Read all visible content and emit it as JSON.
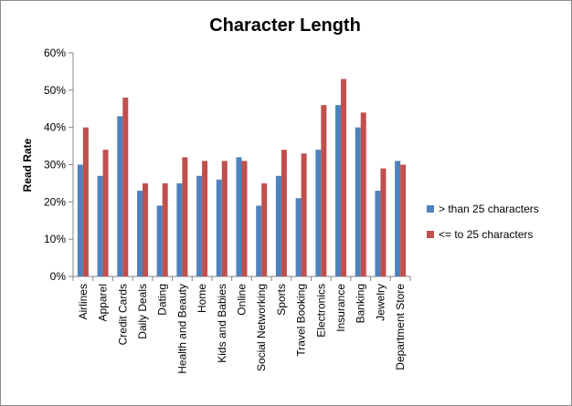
{
  "chart_data": {
    "type": "bar",
    "title": "Character Length",
    "xlabel": "",
    "ylabel": "Read Rate",
    "ylim": [
      0,
      60
    ],
    "yticks": [
      "0%",
      "10%",
      "20%",
      "30%",
      "40%",
      "50%",
      "60%"
    ],
    "grid": false,
    "legend_position": "right",
    "categories": [
      "Airlines",
      "Apparel",
      "Credit Cards",
      "Daily Deals",
      "Dating",
      "Health and Beauty",
      "Home",
      "Kids and Babies",
      "Online",
      "Social Networking",
      "Sports",
      "Travel Booking",
      "Electronics",
      "Insurance",
      "Banking",
      "Jewelry",
      "Department Store"
    ],
    "series": [
      {
        "name": "> than 25 characters",
        "color": "#4f81bd",
        "values": [
          30,
          27,
          43,
          23,
          19,
          25,
          27,
          26,
          32,
          19,
          27,
          21,
          34,
          46,
          40,
          23,
          31
        ]
      },
      {
        "name": "<= to 25 characters",
        "color": "#c0504d",
        "values": [
          40,
          34,
          48,
          25,
          25,
          32,
          31,
          31,
          31,
          25,
          34,
          33,
          46,
          53,
          44,
          29,
          30
        ]
      }
    ]
  }
}
